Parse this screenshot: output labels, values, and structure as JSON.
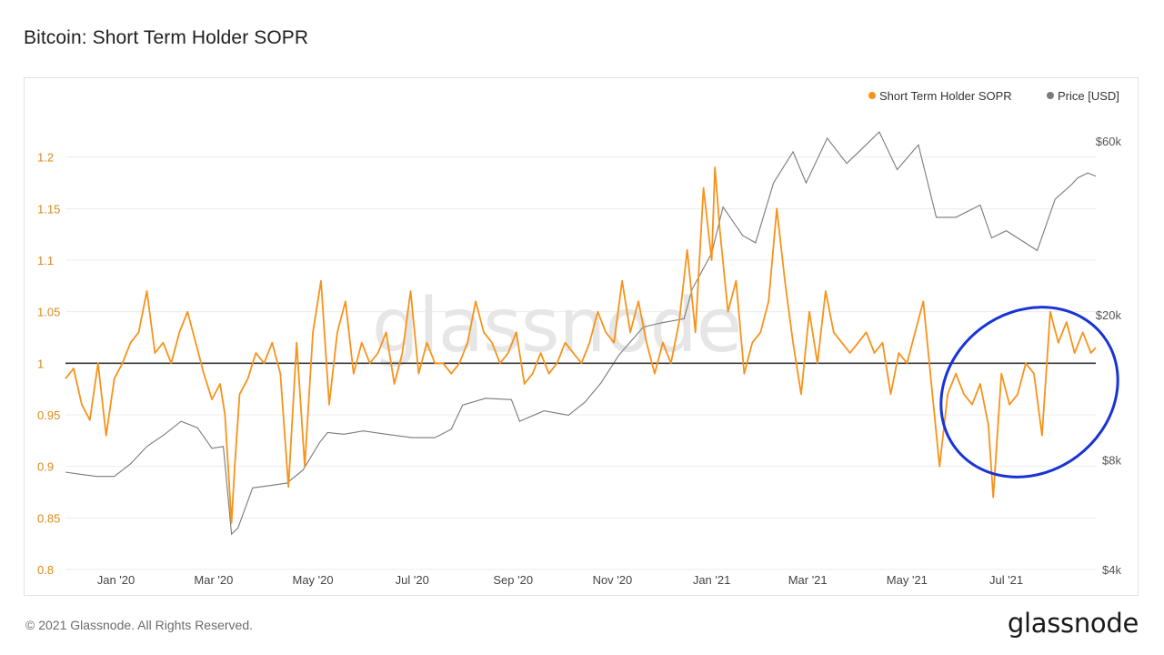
{
  "page": {
    "title": "Bitcoin: Short Term Holder SOPR",
    "copyright": "© 2021 Glassnode. All Rights Reserved.",
    "brand": "glassnode",
    "watermark": "glassnode"
  },
  "colors": {
    "sopr": "#f7931a",
    "price": "#7a7a7a",
    "baseline": "#3a3a3a",
    "highlight": "#1833d6",
    "grid": "#ececec",
    "left_tick": "#d98a1c",
    "right_tick": "#555555"
  },
  "chart_data": {
    "type": "line",
    "title": "Bitcoin: Short Term Holder SOPR",
    "x_range": [
      "2019-12-01",
      "2021-08-25"
    ],
    "x_ticks": [
      {
        "date": "2020-01-01",
        "label": "Jan '20"
      },
      {
        "date": "2020-03-01",
        "label": "Mar '20"
      },
      {
        "date": "2020-05-01",
        "label": "May '20"
      },
      {
        "date": "2020-07-01",
        "label": "Jul '20"
      },
      {
        "date": "2020-09-01",
        "label": "Sep '20"
      },
      {
        "date": "2020-11-01",
        "label": "Nov '20"
      },
      {
        "date": "2021-01-01",
        "label": "Jan '21"
      },
      {
        "date": "2021-03-01",
        "label": "Mar '21"
      },
      {
        "date": "2021-05-01",
        "label": "May '21"
      },
      {
        "date": "2021-07-01",
        "label": "Jul '21"
      }
    ],
    "y_left": {
      "min": 0.8,
      "max": 1.25,
      "ticks": [
        0.8,
        0.85,
        0.9,
        0.95,
        1,
        1.05,
        1.1,
        1.15,
        1.2
      ],
      "tick_labels": [
        "0.8",
        "0.85",
        "0.9",
        "0.95",
        "1",
        "1.05",
        "1.1",
        "1.15",
        "1.2"
      ]
    },
    "y_right": {
      "scale": "log",
      "min": 4000,
      "max": 75000,
      "ticks": [
        4000,
        8000,
        20000,
        60000
      ],
      "tick_labels": [
        "$4k",
        "$8k",
        "$20k",
        "$60k"
      ]
    },
    "reference_line": 1,
    "legend": {
      "placement": "top-right",
      "items": [
        "Short Term Holder SOPR",
        "Price [USD]"
      ]
    },
    "series": [
      {
        "name": "Short Term Holder SOPR",
        "axis": "left",
        "points": [
          [
            "2019-12-01",
            0.985
          ],
          [
            "2019-12-06",
            0.995
          ],
          [
            "2019-12-11",
            0.96
          ],
          [
            "2019-12-16",
            0.945
          ],
          [
            "2019-12-21",
            1.0
          ],
          [
            "2019-12-26",
            0.93
          ],
          [
            "2019-12-31",
            0.985
          ],
          [
            "2020-01-05",
            1.0
          ],
          [
            "2020-01-10",
            1.02
          ],
          [
            "2020-01-15",
            1.03
          ],
          [
            "2020-01-20",
            1.07
          ],
          [
            "2020-01-25",
            1.01
          ],
          [
            "2020-01-30",
            1.02
          ],
          [
            "2020-02-04",
            1.0
          ],
          [
            "2020-02-09",
            1.03
          ],
          [
            "2020-02-14",
            1.05
          ],
          [
            "2020-02-19",
            1.02
          ],
          [
            "2020-02-24",
            0.99
          ],
          [
            "2020-02-29",
            0.965
          ],
          [
            "2020-03-05",
            0.98
          ],
          [
            "2020-03-08",
            0.95
          ],
          [
            "2020-03-12",
            0.845
          ],
          [
            "2020-03-14",
            0.9
          ],
          [
            "2020-03-17",
            0.97
          ],
          [
            "2020-03-22",
            0.985
          ],
          [
            "2020-03-27",
            1.01
          ],
          [
            "2020-04-01",
            1.0
          ],
          [
            "2020-04-06",
            1.02
          ],
          [
            "2020-04-11",
            0.99
          ],
          [
            "2020-04-16",
            0.88
          ],
          [
            "2020-04-21",
            1.02
          ],
          [
            "2020-04-26",
            0.9
          ],
          [
            "2020-05-01",
            1.03
          ],
          [
            "2020-05-06",
            1.08
          ],
          [
            "2020-05-11",
            0.96
          ],
          [
            "2020-05-16",
            1.03
          ],
          [
            "2020-05-21",
            1.06
          ],
          [
            "2020-05-26",
            0.99
          ],
          [
            "2020-05-31",
            1.02
          ],
          [
            "2020-06-05",
            1.0
          ],
          [
            "2020-06-10",
            1.01
          ],
          [
            "2020-06-15",
            1.03
          ],
          [
            "2020-06-20",
            0.98
          ],
          [
            "2020-06-25",
            1.01
          ],
          [
            "2020-06-30",
            1.07
          ],
          [
            "2020-07-05",
            0.99
          ],
          [
            "2020-07-10",
            1.02
          ],
          [
            "2020-07-15",
            1.0
          ],
          [
            "2020-07-20",
            1.0
          ],
          [
            "2020-07-25",
            0.99
          ],
          [
            "2020-07-30",
            1.0
          ],
          [
            "2020-08-04",
            1.02
          ],
          [
            "2020-08-09",
            1.06
          ],
          [
            "2020-08-14",
            1.03
          ],
          [
            "2020-08-19",
            1.02
          ],
          [
            "2020-08-24",
            1.0
          ],
          [
            "2020-08-29",
            1.01
          ],
          [
            "2020-09-03",
            1.03
          ],
          [
            "2020-09-08",
            0.98
          ],
          [
            "2020-09-13",
            0.99
          ],
          [
            "2020-09-18",
            1.01
          ],
          [
            "2020-09-23",
            0.99
          ],
          [
            "2020-09-28",
            1.0
          ],
          [
            "2020-10-03",
            1.02
          ],
          [
            "2020-10-08",
            1.01
          ],
          [
            "2020-10-13",
            1.0
          ],
          [
            "2020-10-18",
            1.02
          ],
          [
            "2020-10-23",
            1.05
          ],
          [
            "2020-10-28",
            1.03
          ],
          [
            "2020-11-02",
            1.02
          ],
          [
            "2020-11-07",
            1.08
          ],
          [
            "2020-11-12",
            1.03
          ],
          [
            "2020-11-17",
            1.06
          ],
          [
            "2020-11-22",
            1.02
          ],
          [
            "2020-11-27",
            0.99
          ],
          [
            "2020-12-02",
            1.02
          ],
          [
            "2020-12-07",
            1.0
          ],
          [
            "2020-12-12",
            1.04
          ],
          [
            "2020-12-17",
            1.11
          ],
          [
            "2020-12-22",
            1.03
          ],
          [
            "2020-12-27",
            1.17
          ],
          [
            "2021-01-01",
            1.1
          ],
          [
            "2021-01-03",
            1.19
          ],
          [
            "2021-01-06",
            1.13
          ],
          [
            "2021-01-11",
            1.05
          ],
          [
            "2021-01-16",
            1.08
          ],
          [
            "2021-01-21",
            0.99
          ],
          [
            "2021-01-26",
            1.02
          ],
          [
            "2021-01-31",
            1.03
          ],
          [
            "2021-02-05",
            1.06
          ],
          [
            "2021-02-10",
            1.15
          ],
          [
            "2021-02-15",
            1.08
          ],
          [
            "2021-02-20",
            1.02
          ],
          [
            "2021-02-25",
            0.97
          ],
          [
            "2021-03-02",
            1.05
          ],
          [
            "2021-03-07",
            1.0
          ],
          [
            "2021-03-12",
            1.07
          ],
          [
            "2021-03-17",
            1.03
          ],
          [
            "2021-03-22",
            1.02
          ],
          [
            "2021-03-27",
            1.01
          ],
          [
            "2021-04-01",
            1.02
          ],
          [
            "2021-04-06",
            1.03
          ],
          [
            "2021-04-11",
            1.01
          ],
          [
            "2021-04-16",
            1.02
          ],
          [
            "2021-04-21",
            0.97
          ],
          [
            "2021-04-26",
            1.01
          ],
          [
            "2021-05-01",
            1.0
          ],
          [
            "2021-05-06",
            1.03
          ],
          [
            "2021-05-11",
            1.06
          ],
          [
            "2021-05-16",
            0.98
          ],
          [
            "2021-05-21",
            0.9
          ],
          [
            "2021-05-26",
            0.97
          ],
          [
            "2021-05-31",
            0.99
          ],
          [
            "2021-06-05",
            0.97
          ],
          [
            "2021-06-10",
            0.96
          ],
          [
            "2021-06-15",
            0.98
          ],
          [
            "2021-06-20",
            0.94
          ],
          [
            "2021-06-23",
            0.87
          ],
          [
            "2021-06-28",
            0.99
          ],
          [
            "2021-07-03",
            0.96
          ],
          [
            "2021-07-08",
            0.97
          ],
          [
            "2021-07-13",
            1.0
          ],
          [
            "2021-07-18",
            0.99
          ],
          [
            "2021-07-23",
            0.93
          ],
          [
            "2021-07-28",
            1.05
          ],
          [
            "2021-08-02",
            1.02
          ],
          [
            "2021-08-07",
            1.04
          ],
          [
            "2021-08-12",
            1.01
          ],
          [
            "2021-08-17",
            1.03
          ],
          [
            "2021-08-22",
            1.01
          ],
          [
            "2021-08-25",
            1.015
          ]
        ]
      },
      {
        "name": "Price [USD]",
        "axis": "right",
        "points": [
          [
            "2019-12-01",
            7400
          ],
          [
            "2019-12-10",
            7300
          ],
          [
            "2019-12-20",
            7200
          ],
          [
            "2019-12-31",
            7200
          ],
          [
            "2020-01-10",
            7800
          ],
          [
            "2020-01-20",
            8700
          ],
          [
            "2020-01-31",
            9400
          ],
          [
            "2020-02-10",
            10200
          ],
          [
            "2020-02-20",
            9800
          ],
          [
            "2020-02-29",
            8600
          ],
          [
            "2020-03-07",
            8700
          ],
          [
            "2020-03-12",
            5000
          ],
          [
            "2020-03-16",
            5200
          ],
          [
            "2020-03-25",
            6700
          ],
          [
            "2020-04-05",
            6800
          ],
          [
            "2020-04-15",
            6900
          ],
          [
            "2020-04-25",
            7500
          ],
          [
            "2020-05-05",
            8900
          ],
          [
            "2020-05-10",
            9500
          ],
          [
            "2020-05-20",
            9400
          ],
          [
            "2020-06-01",
            9600
          ],
          [
            "2020-06-15",
            9400
          ],
          [
            "2020-07-01",
            9200
          ],
          [
            "2020-07-15",
            9200
          ],
          [
            "2020-07-25",
            9700
          ],
          [
            "2020-08-01",
            11300
          ],
          [
            "2020-08-15",
            11800
          ],
          [
            "2020-08-31",
            11700
          ],
          [
            "2020-09-05",
            10200
          ],
          [
            "2020-09-20",
            10900
          ],
          [
            "2020-10-05",
            10600
          ],
          [
            "2020-10-15",
            11500
          ],
          [
            "2020-10-25",
            13000
          ],
          [
            "2020-11-05",
            15500
          ],
          [
            "2020-11-20",
            18500
          ],
          [
            "2020-12-01",
            19000
          ],
          [
            "2020-12-15",
            19500
          ],
          [
            "2020-12-20",
            23500
          ],
          [
            "2021-01-01",
            29500
          ],
          [
            "2021-01-08",
            39500
          ],
          [
            "2021-01-20",
            33000
          ],
          [
            "2021-01-28",
            31500
          ],
          [
            "2021-02-08",
            46000
          ],
          [
            "2021-02-20",
            56000
          ],
          [
            "2021-02-28",
            46000
          ],
          [
            "2021-03-13",
            61000
          ],
          [
            "2021-03-25",
            52000
          ],
          [
            "2021-04-05",
            58000
          ],
          [
            "2021-04-14",
            63500
          ],
          [
            "2021-04-25",
            50000
          ],
          [
            "2021-05-08",
            58500
          ],
          [
            "2021-05-12",
            49500
          ],
          [
            "2021-05-19",
            37000
          ],
          [
            "2021-05-31",
            37000
          ],
          [
            "2021-06-15",
            40000
          ],
          [
            "2021-06-22",
            32500
          ],
          [
            "2021-07-01",
            34000
          ],
          [
            "2021-07-20",
            30000
          ],
          [
            "2021-07-31",
            41500
          ],
          [
            "2021-08-10",
            45500
          ],
          [
            "2021-08-14",
            47500
          ],
          [
            "2021-08-20",
            49000
          ],
          [
            "2021-08-25",
            48000
          ]
        ]
      }
    ]
  }
}
